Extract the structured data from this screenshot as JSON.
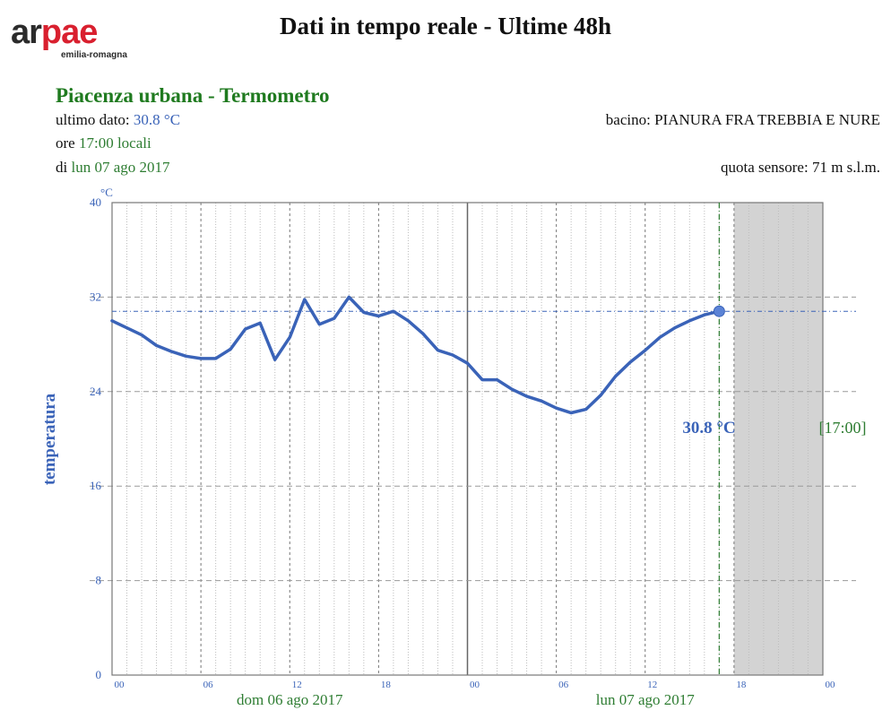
{
  "header": {
    "logo_text_left": "ar",
    "logo_text_right": "pae",
    "logo_subtitle": "emilia-romagna",
    "title": "Dati in tempo reale - Ultime 48h"
  },
  "station": {
    "title": "Piacenza urbana - Termometro",
    "last_label": "ultimo dato:",
    "last_value": "30.8 °C",
    "time_prefix": "ore",
    "time_value": "17:00 locali",
    "date_prefix": "di",
    "date_value": "lun 07 ago 2017",
    "basin_label": "bacino:",
    "basin_value": "PIANURA FRA TREBBIA E NURE",
    "altitude_label": "quota sensore:",
    "altitude_value": "71 m s.l.m."
  },
  "colors": {
    "series": "#3a63b8",
    "axis_label": "#3a63b8",
    "date_label": "#2e7d32",
    "future_band": "#d3d3d3"
  },
  "chart_data": {
    "type": "line",
    "ylabel": "temperatura",
    "yunit": "°C",
    "ylim": [
      0,
      40
    ],
    "yticks": [
      0,
      8,
      16,
      24,
      32,
      40
    ],
    "xlim": [
      0,
      48
    ],
    "xticks": [
      {
        "x": 0,
        "label": "00"
      },
      {
        "x": 6,
        "label": "06"
      },
      {
        "x": 12,
        "label": "12"
      },
      {
        "x": 18,
        "label": "18"
      },
      {
        "x": 24,
        "label": "00"
      },
      {
        "x": 30,
        "label": "06"
      },
      {
        "x": 36,
        "label": "12"
      },
      {
        "x": 42,
        "label": "18"
      },
      {
        "x": 48,
        "label": "00"
      }
    ],
    "day_labels": [
      {
        "x": 12,
        "label": "dom 06 ago 2017"
      },
      {
        "x": 36,
        "label": "lun 07 ago 2017"
      }
    ],
    "grid": true,
    "series": [
      {
        "values": [
          {
            "x": 0,
            "y": 30.0
          },
          {
            "x": 1,
            "y": 29.4
          },
          {
            "x": 2,
            "y": 28.8
          },
          {
            "x": 3,
            "y": 27.9
          },
          {
            "x": 4,
            "y": 27.4
          },
          {
            "x": 5,
            "y": 27.0
          },
          {
            "x": 6,
            "y": 26.8
          },
          {
            "x": 7,
            "y": 26.8
          },
          {
            "x": 8,
            "y": 27.6
          },
          {
            "x": 9,
            "y": 29.3
          },
          {
            "x": 10,
            "y": 29.8
          },
          {
            "x": 11,
            "y": 26.7
          },
          {
            "x": 12,
            "y": 28.6
          },
          {
            "x": 13,
            "y": 31.8
          },
          {
            "x": 14,
            "y": 29.7
          },
          {
            "x": 15,
            "y": 30.2
          },
          {
            "x": 16,
            "y": 32.0
          },
          {
            "x": 17,
            "y": 30.7
          },
          {
            "x": 18,
            "y": 30.4
          },
          {
            "x": 19,
            "y": 30.8
          },
          {
            "x": 20,
            "y": 30.0
          },
          {
            "x": 21,
            "y": 28.9
          },
          {
            "x": 22,
            "y": 27.5
          },
          {
            "x": 23,
            "y": 27.1
          },
          {
            "x": 24,
            "y": 26.4
          },
          {
            "x": 25,
            "y": 25.0
          },
          {
            "x": 26,
            "y": 25.0
          },
          {
            "x": 27,
            "y": 24.2
          },
          {
            "x": 28,
            "y": 23.6
          },
          {
            "x": 29,
            "y": 23.2
          },
          {
            "x": 30,
            "y": 22.6
          },
          {
            "x": 31,
            "y": 22.2
          },
          {
            "x": 32,
            "y": 22.5
          },
          {
            "x": 33,
            "y": 23.7
          },
          {
            "x": 34,
            "y": 25.3
          },
          {
            "x": 35,
            "y": 26.5
          },
          {
            "x": 36,
            "y": 27.5
          },
          {
            "x": 37,
            "y": 28.6
          },
          {
            "x": 38,
            "y": 29.4
          },
          {
            "x": 39,
            "y": 30.0
          },
          {
            "x": 40,
            "y": 30.5
          },
          {
            "x": 41,
            "y": 30.8
          }
        ]
      }
    ],
    "last_point": {
      "x": 41,
      "y": 30.8
    },
    "current_value_label": "30.8 °C",
    "current_time_label": "[17:00]",
    "now_x": 41
  }
}
